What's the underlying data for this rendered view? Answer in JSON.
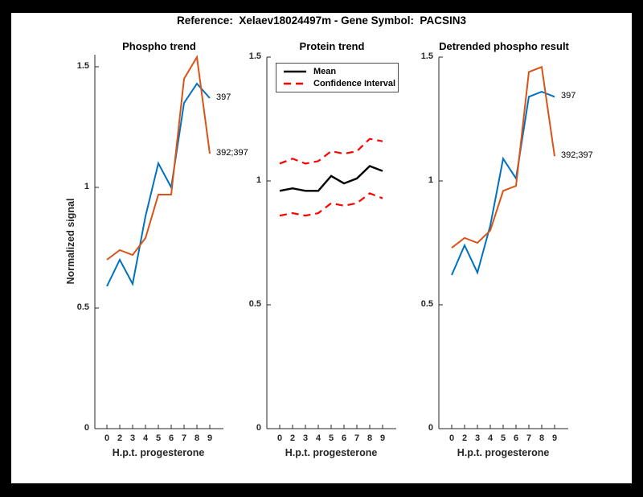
{
  "figure": {
    "title": "Reference:  Xelaev18024497m - Gene Symbol:  PACSIN3"
  },
  "chart_data": [
    {
      "type": "line",
      "title": "Phospho trend",
      "xlabel": "H.p.t. progesterone",
      "ylabel": "Normalized signal",
      "categories": [
        0,
        2,
        3,
        4,
        5,
        6,
        7,
        8,
        9
      ],
      "x_tick_labels": [
        "0",
        "2",
        "3",
        "4",
        "5",
        "6",
        "7",
        "8",
        "9"
      ],
      "y_ticks": [
        0,
        0.5,
        1,
        1.5
      ],
      "y_tick_labels": [
        "0",
        "0.5",
        "1",
        "1.5"
      ],
      "ylim": [
        0,
        1.55
      ],
      "grid": false,
      "legend_position": "none",
      "series": [
        {
          "name": "397",
          "color": "#0072BD",
          "style": "solid",
          "end_label": "397",
          "values": [
            0.59,
            0.7,
            0.6,
            0.88,
            1.1,
            1.0,
            1.35,
            1.43,
            1.37
          ]
        },
        {
          "name": "392;397",
          "color": "#D95319",
          "style": "solid",
          "end_label": "392;397",
          "values": [
            0.7,
            0.74,
            0.72,
            0.79,
            0.97,
            0.97,
            1.45,
            1.54,
            1.14
          ]
        }
      ]
    },
    {
      "type": "line",
      "title": "Protein trend",
      "xlabel": "H.p.t. progesterone",
      "ylabel": "",
      "categories": [
        0,
        2,
        3,
        4,
        5,
        6,
        7,
        8,
        9
      ],
      "x_tick_labels": [
        "0",
        "2",
        "3",
        "4",
        "5",
        "6",
        "7",
        "8",
        "9"
      ],
      "y_ticks": [
        0,
        0.5,
        1,
        1.5
      ],
      "y_tick_labels": [
        "0",
        "0.5",
        "1",
        "1.5"
      ],
      "ylim": [
        0,
        1.5
      ],
      "grid": false,
      "legend_position": "top-left",
      "legend": {
        "entries": [
          {
            "label": "Mean",
            "color": "#000000",
            "style": "solid"
          },
          {
            "label": "Confidence Interval",
            "color": "#FF0000",
            "style": "dashed"
          }
        ]
      },
      "series": [
        {
          "name": "Mean",
          "color": "#000000",
          "style": "solid",
          "width": 2.4,
          "values": [
            0.96,
            0.97,
            0.96,
            0.96,
            1.02,
            0.99,
            1.01,
            1.06,
            1.04
          ]
        },
        {
          "name": "Confidence Interval upper",
          "color": "#FF0000",
          "style": "dashed",
          "width": 2.2,
          "values": [
            1.07,
            1.09,
            1.07,
            1.08,
            1.12,
            1.11,
            1.12,
            1.17,
            1.16
          ]
        },
        {
          "name": "Confidence Interval lower",
          "color": "#FF0000",
          "style": "dashed",
          "width": 2.2,
          "values": [
            0.86,
            0.87,
            0.86,
            0.87,
            0.91,
            0.9,
            0.91,
            0.95,
            0.93
          ]
        }
      ]
    },
    {
      "type": "line",
      "title": "Detrended phospho result",
      "xlabel": "H.p.t. progesterone",
      "ylabel": "",
      "categories": [
        0,
        2,
        3,
        4,
        5,
        6,
        7,
        8,
        9
      ],
      "x_tick_labels": [
        "0",
        "2",
        "3",
        "4",
        "5",
        "6",
        "7",
        "8",
        "9"
      ],
      "y_ticks": [
        0,
        0.5,
        1,
        1.5
      ],
      "y_tick_labels": [
        "0",
        "0.5",
        "1",
        "1.5"
      ],
      "ylim": [
        0,
        1.5
      ],
      "grid": false,
      "legend_position": "none",
      "series": [
        {
          "name": "397",
          "color": "#0072BD",
          "style": "solid",
          "end_label": "397",
          "values": [
            0.62,
            0.74,
            0.63,
            0.82,
            1.09,
            1.01,
            1.34,
            1.36,
            1.34
          ]
        },
        {
          "name": "392;397",
          "color": "#D95319",
          "style": "solid",
          "end_label": "392;397",
          "values": [
            0.73,
            0.77,
            0.75,
            0.8,
            0.96,
            0.98,
            1.44,
            1.46,
            1.1
          ]
        }
      ]
    }
  ],
  "colors": {
    "series_blue": "#0072BD",
    "series_orange": "#D95319",
    "ci_red": "#FF0000",
    "mean_black": "#000000",
    "axis": "#262626",
    "figure_bg": "#ffffff",
    "frame_bg": "#000000"
  }
}
